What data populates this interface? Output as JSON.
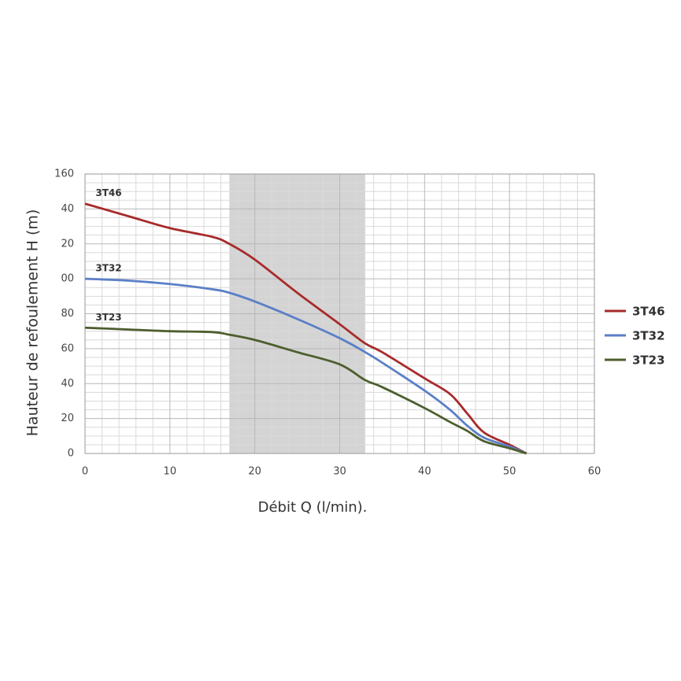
{
  "chart_data": {
    "type": "line",
    "x_label": "Débit Q (l/min).",
    "y_label": "Hauteur de refoulement H (m)",
    "xlim": [
      0,
      60
    ],
    "xticks": [
      0,
      10,
      20,
      30,
      40,
      50,
      60
    ],
    "ylim": [
      0,
      160
    ],
    "yticks": [
      0,
      20,
      40,
      60,
      80,
      {
        "value": 100,
        "label": "00"
      },
      {
        "value": 120,
        "label": "20"
      },
      {
        "value": 140,
        "label": "40"
      },
      160
    ],
    "grid": true,
    "highlight_range": [
      17,
      33
    ],
    "highlight_color": "#d4d4d4",
    "legend": "right",
    "x": [
      0,
      5,
      10,
      15,
      17,
      20,
      25,
      30,
      33,
      35,
      40,
      43,
      45,
      47,
      50,
      52
    ],
    "series": [
      {
        "name": "3T46",
        "color": "#a82a2a",
        "values": [
          143,
          136,
          129,
          124,
          120,
          111,
          92,
          74,
          63,
          58,
          43,
          34,
          23,
          12,
          5,
          0
        ]
      },
      {
        "name": "3T32",
        "color": "#5b7fc7",
        "values": [
          100,
          99,
          97,
          94,
          92,
          87,
          77,
          66,
          58,
          52,
          36,
          25,
          16,
          9,
          4,
          0
        ]
      },
      {
        "name": "3T23",
        "color": "#4d5e2e",
        "values": [
          72,
          71,
          70,
          69.5,
          68,
          65,
          58,
          51,
          42,
          38,
          26,
          18,
          13,
          7,
          3,
          0
        ]
      }
    ]
  }
}
